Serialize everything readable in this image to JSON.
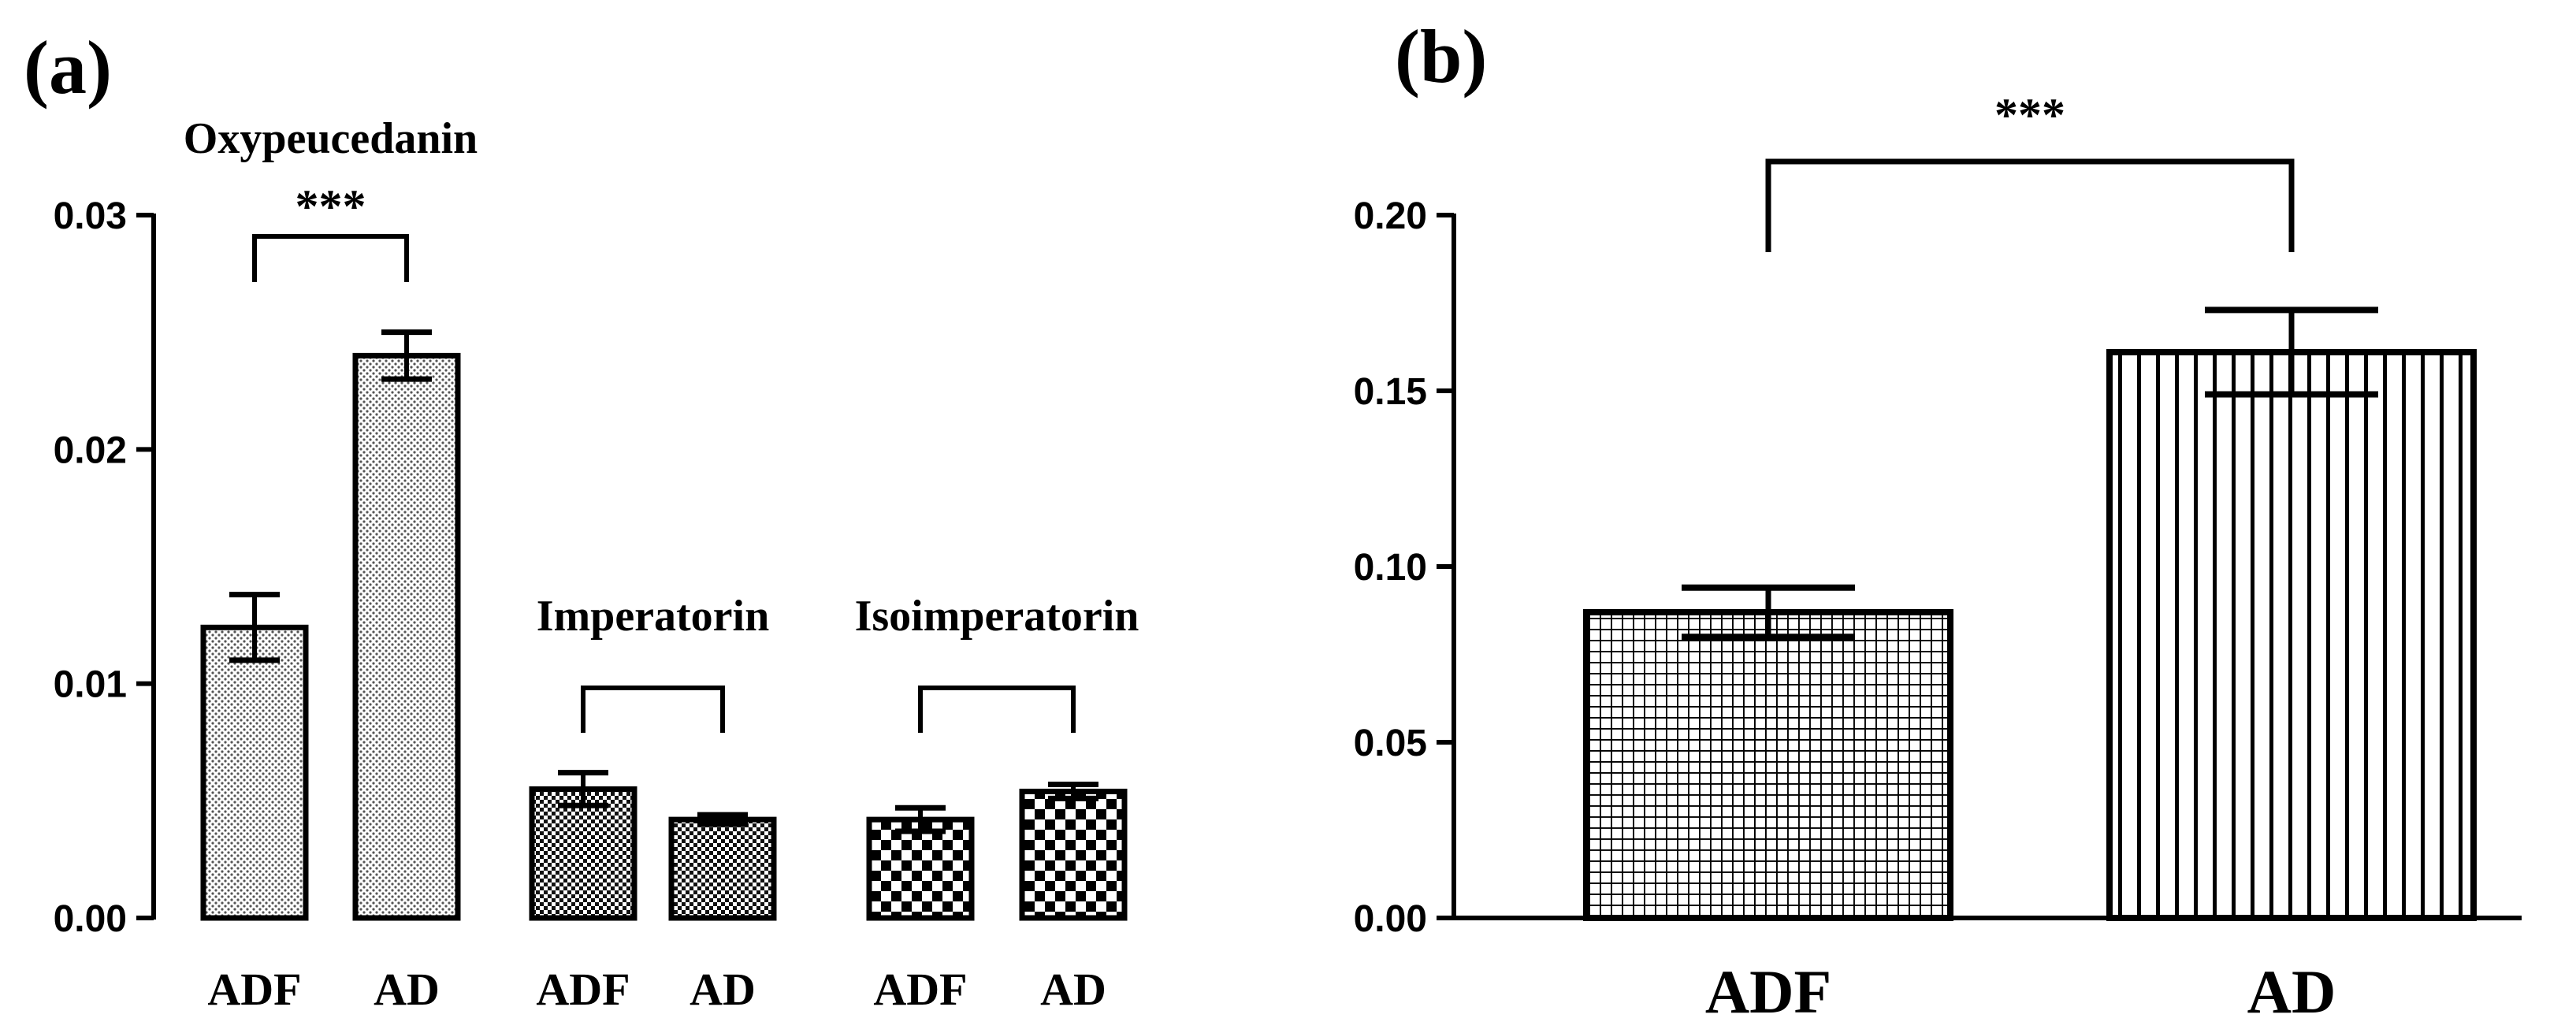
{
  "chart_data": [
    {
      "panel": "(a)",
      "type": "bar",
      "ylim": [
        0,
        0.03
      ],
      "yticks": [
        "0.00",
        "0.01",
        "0.02",
        "0.03"
      ],
      "categories": [
        "ADF",
        "AD",
        "ADF",
        "AD",
        "ADF",
        "AD"
      ],
      "values": [
        0.0124,
        0.024,
        0.0055,
        0.0042,
        0.0042,
        0.0054
      ],
      "errors": [
        0.0014,
        0.001,
        0.0007,
        0.0002,
        0.0005,
        0.0003
      ],
      "groups": [
        {
          "name": "Oxypeucedanin",
          "bars": [
            0,
            1
          ],
          "significance": "***"
        },
        {
          "name": "Imperatorin",
          "bars": [
            2,
            3
          ],
          "significance": ""
        },
        {
          "name": "Isoimperatorin",
          "bars": [
            4,
            5
          ],
          "significance": ""
        }
      ]
    },
    {
      "panel": "(b)",
      "type": "bar",
      "ylim": [
        0,
        0.2
      ],
      "yticks": [
        "0.00",
        "0.05",
        "0.10",
        "0.15",
        "0.20"
      ],
      "categories": [
        "ADF",
        "AD"
      ],
      "values": [
        0.087,
        0.161
      ],
      "errors": [
        0.007,
        0.012
      ],
      "significance": "***"
    }
  ]
}
